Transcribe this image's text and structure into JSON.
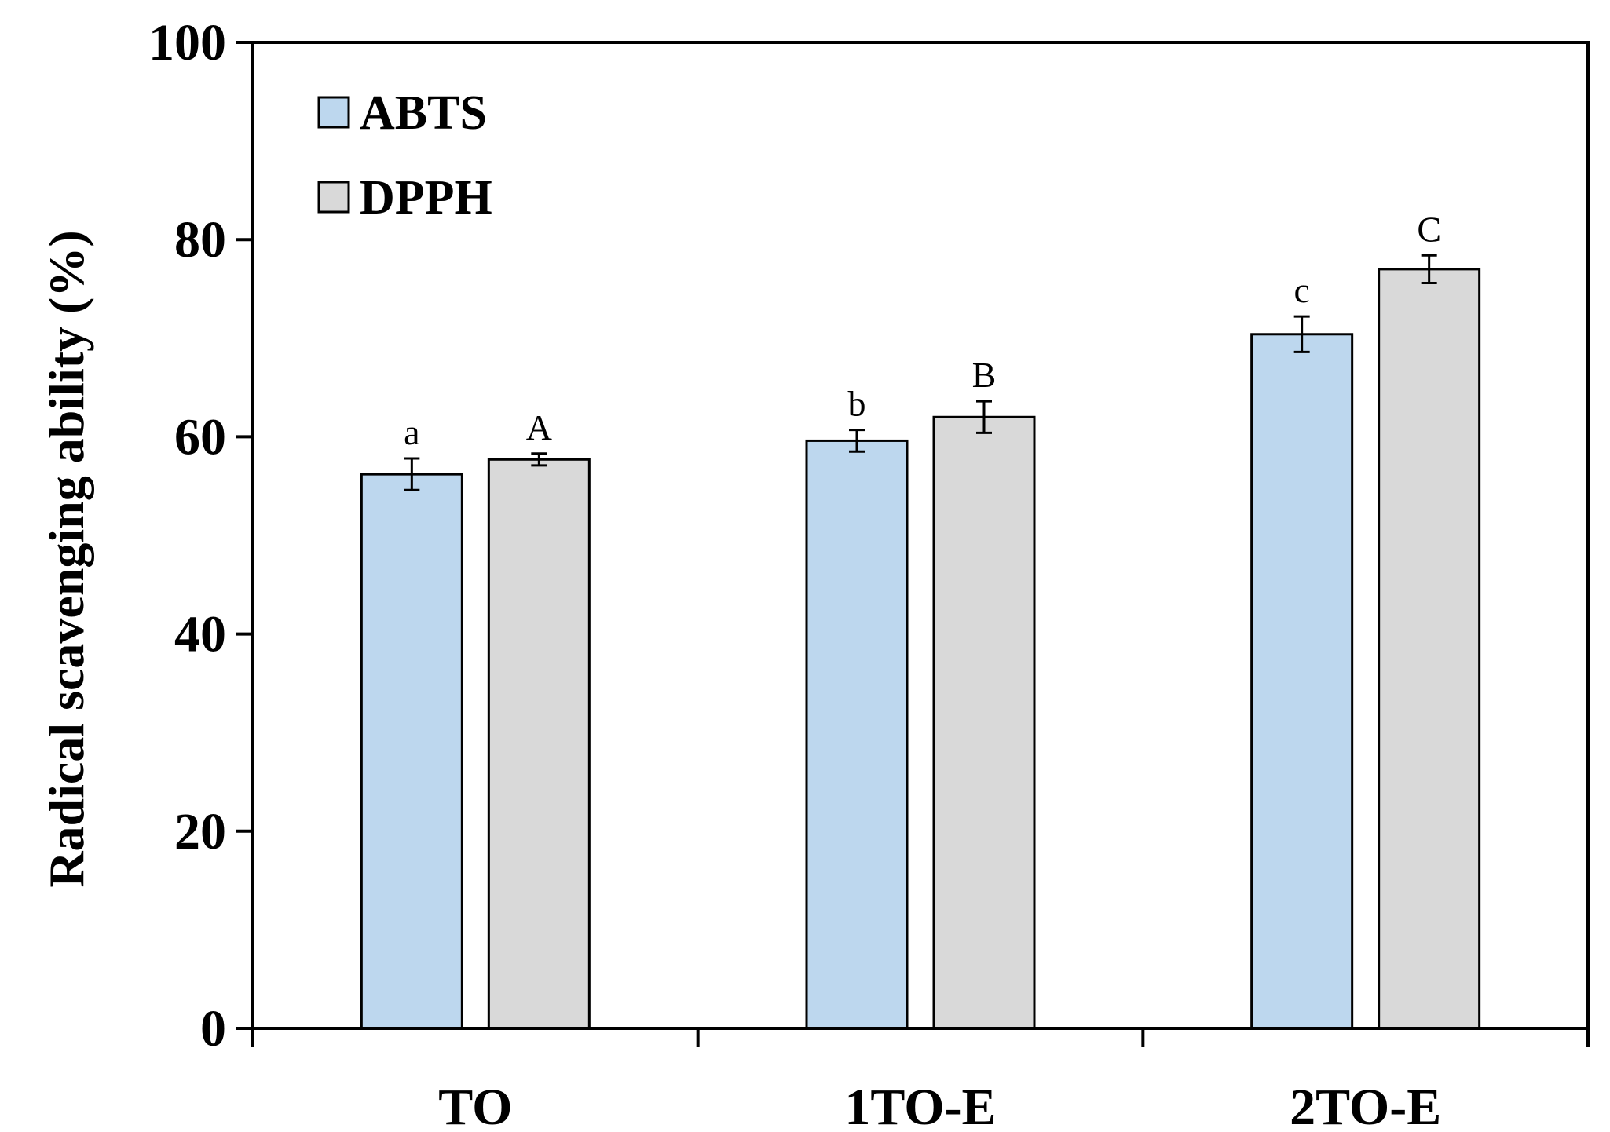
{
  "chart_data": {
    "type": "bar",
    "title": "",
    "xlabel": "",
    "ylabel": "Radical scavenging ability (%)",
    "ylim": [
      0,
      100
    ],
    "yticks": [
      0,
      20,
      40,
      60,
      80,
      100
    ],
    "categories": [
      "TO",
      "1TO-E",
      "2TO-E"
    ],
    "series": [
      {
        "name": "ABTS",
        "color": "#bdd7ee",
        "values": [
          56.2,
          59.6,
          70.4
        ],
        "errors": [
          1.6,
          1.1,
          1.8
        ],
        "labels": [
          "a",
          "b",
          "c"
        ]
      },
      {
        "name": "DPPH",
        "color": "#d9d9d9",
        "values": [
          57.7,
          62.0,
          77.0
        ],
        "errors": [
          0.6,
          1.6,
          1.4
        ],
        "labels": [
          "A",
          "B",
          "C"
        ]
      }
    ],
    "legend_position": "top-left",
    "grid": false
  }
}
